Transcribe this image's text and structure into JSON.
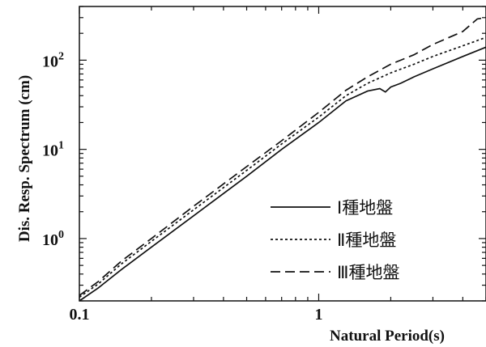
{
  "chart_data": {
    "type": "line",
    "xlabel": "Natural Period(s)",
    "ylabel": "Dis. Resp. Spectrum (cm)",
    "xscale": "log",
    "yscale": "log",
    "xlim": [
      0.1,
      5
    ],
    "ylim": [
      0.2,
      400
    ],
    "x_ticks": [
      {
        "value": 0.1,
        "label": "0.1"
      },
      {
        "value": 1,
        "label": "1"
      }
    ],
    "y_ticks": [
      {
        "value": 1,
        "base": "10",
        "exp": "0"
      },
      {
        "value": 10,
        "base": "10",
        "exp": "1"
      },
      {
        "value": 100,
        "base": "10",
        "exp": "2"
      }
    ],
    "legend_position": "center-right",
    "series": [
      {
        "name": "Ⅰ種地盤",
        "style": "solid",
        "x": [
          0.1,
          0.12,
          0.15,
          0.2,
          0.3,
          0.5,
          0.7,
          1.0,
          1.3,
          1.6,
          1.8,
          1.9,
          2.0,
          2.2,
          2.5,
          3.0,
          4.0,
          5.0
        ],
        "y": [
          0.2,
          0.28,
          0.45,
          0.8,
          1.8,
          5.0,
          10,
          20,
          35,
          45,
          48,
          44,
          50,
          55,
          65,
          80,
          110,
          140
        ]
      },
      {
        "name": "Ⅱ種地盤",
        "style": "dotted",
        "x": [
          0.1,
          0.12,
          0.15,
          0.2,
          0.3,
          0.5,
          0.7,
          1.0,
          1.3,
          1.6,
          2.0,
          2.5,
          3.0,
          4.0,
          5.0
        ],
        "y": [
          0.22,
          0.31,
          0.52,
          0.93,
          2.1,
          5.8,
          11.5,
          23,
          40,
          55,
          72,
          90,
          110,
          145,
          180
        ]
      },
      {
        "name": "Ⅲ種地盤",
        "style": "dashed",
        "x": [
          0.1,
          0.12,
          0.15,
          0.2,
          0.3,
          0.5,
          0.7,
          1.0,
          1.3,
          1.6,
          2.0,
          2.5,
          3.0,
          4.0,
          4.6,
          5.0
        ],
        "y": [
          0.23,
          0.33,
          0.56,
          1.0,
          2.3,
          6.4,
          12.5,
          26,
          46,
          65,
          90,
          115,
          150,
          210,
          290,
          300
        ]
      }
    ]
  }
}
